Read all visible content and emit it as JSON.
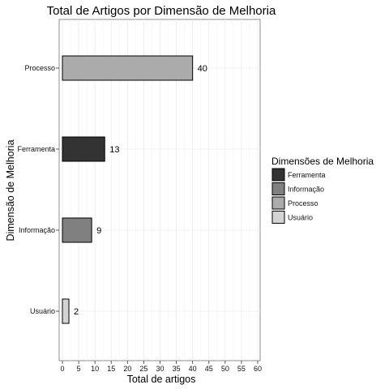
{
  "chart_data": {
    "type": "bar",
    "orientation": "horizontal",
    "title": "Total de Artigos por Dimensão de Melhoria",
    "xlabel": "Total de artigos",
    "ylabel": "Dimensão de Melhoria",
    "categories": [
      "Processo",
      "Ferramenta",
      "Informação",
      "Usuário"
    ],
    "values": [
      40,
      13,
      9,
      2
    ],
    "data_labels": [
      "40",
      "13",
      "9",
      "2"
    ],
    "bar_colors": [
      "#ababab",
      "#333333",
      "#808080",
      "#d4d4d4"
    ],
    "xlim": [
      0,
      60
    ],
    "x_ticks": [
      0,
      5,
      10,
      15,
      20,
      25,
      30,
      35,
      40,
      45,
      50,
      55,
      60
    ],
    "grid": true,
    "legend": {
      "title": "Dimensões de Melhoria",
      "placement": "right",
      "entries": [
        {
          "label": "Ferramenta",
          "color": "#333333"
        },
        {
          "label": "Informação",
          "color": "#808080"
        },
        {
          "label": "Processo",
          "color": "#ababab"
        },
        {
          "label": "Usuário",
          "color": "#d4d4d4"
        }
      ]
    }
  }
}
